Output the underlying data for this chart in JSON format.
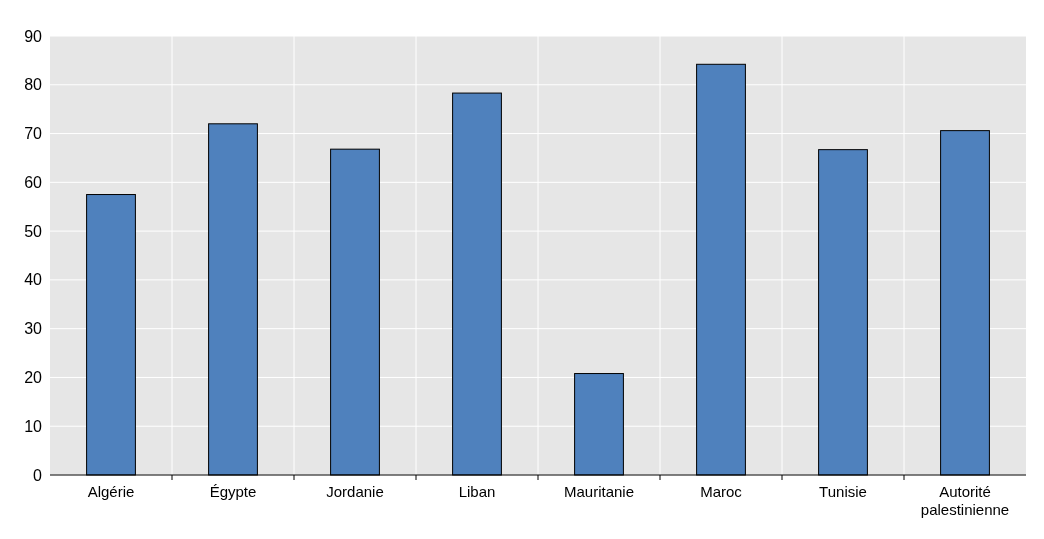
{
  "chart_data": {
    "type": "bar",
    "categories": [
      "Algérie",
      "Égypte",
      "Jordanie",
      "Liban",
      "Mauritanie",
      "Maroc",
      "Tunisie",
      "Autorité palestinienne"
    ],
    "values": [
      57.5,
      72,
      66.8,
      78.3,
      20.8,
      84.2,
      66.7,
      70.6
    ],
    "color": "#4f81bd",
    "ylim": [
      0,
      90
    ],
    "yticks": [
      0,
      10,
      20,
      30,
      40,
      50,
      60,
      70,
      80,
      90
    ],
    "grid": true
  }
}
